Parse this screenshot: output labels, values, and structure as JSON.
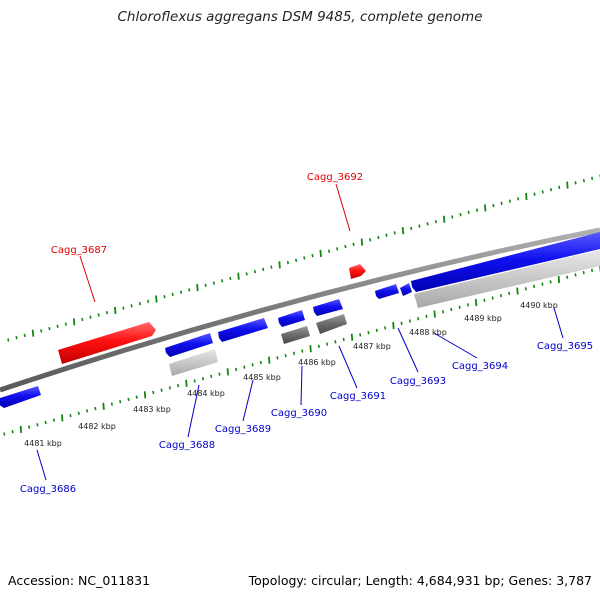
{
  "title": "Chloroflexus aggregans DSM 9485, complete genome",
  "footer": {
    "accession": "Accession: NC_011831",
    "stats": "Topology: circular; Length: 4,684,931 bp; Genes: 3,787"
  },
  "colors": {
    "forward": "#ff0000",
    "reverse": "#0000ee",
    "tick": "#118811",
    "backbone": "#888888",
    "rna_dark": "#666666",
    "rna_light": "#c8c8c8"
  },
  "kbp_labels": [
    "4481 kbp",
    "4482 kbp",
    "4483 kbp",
    "4484 kbp",
    "4485 kbp",
    "4486 kbp",
    "4487 kbp",
    "4488 kbp",
    "4489 kbp",
    "4490 kbp"
  ],
  "genes": [
    {
      "name": "Cagg_3686",
      "strand": "reverse"
    },
    {
      "name": "Cagg_3687",
      "strand": "forward"
    },
    {
      "name": "Cagg_3688",
      "strand": "reverse"
    },
    {
      "name": "Cagg_3689",
      "strand": "reverse"
    },
    {
      "name": "Cagg_3690",
      "strand": "reverse"
    },
    {
      "name": "Cagg_3691",
      "strand": "reverse"
    },
    {
      "name": "Cagg_3692",
      "strand": "forward"
    },
    {
      "name": "Cagg_3693",
      "strand": "reverse"
    },
    {
      "name": "Cagg_3694",
      "strand": "reverse"
    },
    {
      "name": "Cagg_3695",
      "strand": "reverse"
    }
  ]
}
